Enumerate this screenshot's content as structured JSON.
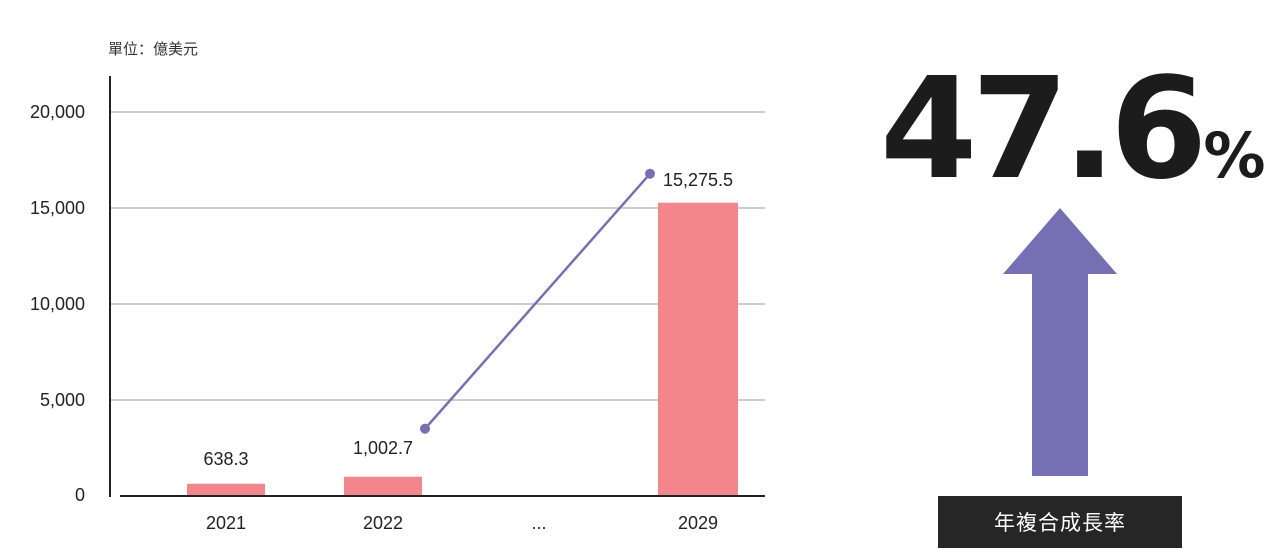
{
  "unit_label": "單位：億美元",
  "chart_data": {
    "type": "bar",
    "categories": [
      "2021",
      "2022",
      "...",
      "2029"
    ],
    "values": [
      638.3,
      1002.7,
      null,
      15275.5
    ],
    "data_labels": [
      "638.3",
      "1,002.7",
      "",
      "15,275.5"
    ],
    "line_points": [
      {
        "category": "2022",
        "value": 1002.7
      },
      {
        "category": "2029",
        "value": 15275.5
      }
    ],
    "ylim": [
      0,
      20000
    ],
    "yticks": [
      0,
      5000,
      10000,
      15000,
      20000
    ],
    "ytick_labels": [
      "0",
      "5,000",
      "10,000",
      "15,000",
      "20,000"
    ],
    "grid": true,
    "bar_color": "#F2868C",
    "line_color": "#7570B4"
  },
  "cagr": {
    "value": "47.6",
    "unit": "%",
    "caption": "年複合成長率",
    "arrow_color": "#7570B4"
  }
}
